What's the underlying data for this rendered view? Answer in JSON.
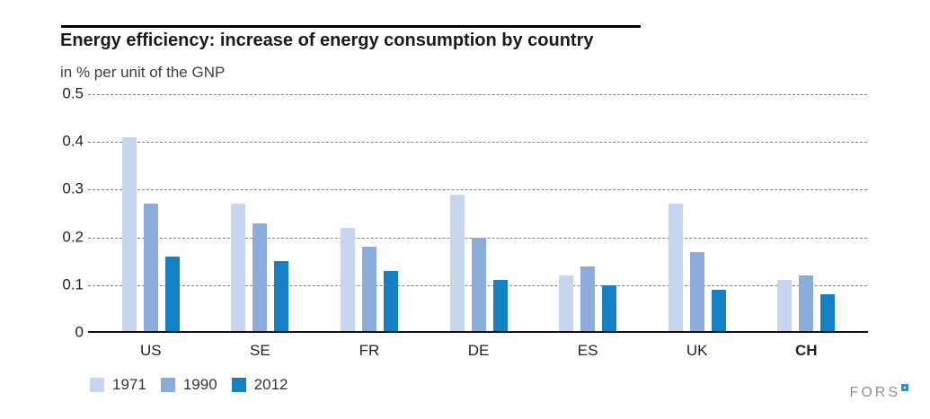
{
  "header": {
    "title": "Energy efficiency: increase of energy consumption by country",
    "subtitle": "in % per unit of the GNP"
  },
  "chart_data": {
    "type": "bar",
    "title": "Energy efficiency: increase of energy consumption by country",
    "subtitle": "in % per unit of the GNP",
    "categories": [
      "US",
      "SE",
      "FR",
      "DE",
      "ES",
      "UK",
      "CH"
    ],
    "bold_category": "CH",
    "series": [
      {
        "name": "1971",
        "color": "#c7d5ef",
        "values": [
          0.41,
          0.27,
          0.22,
          0.29,
          0.12,
          0.27,
          0.11
        ]
      },
      {
        "name": "1990",
        "color": "#8cadda",
        "values": [
          0.27,
          0.23,
          0.18,
          0.2,
          0.14,
          0.17,
          0.12
        ]
      },
      {
        "name": "2012",
        "color": "#1580c4",
        "values": [
          0.16,
          0.15,
          0.13,
          0.11,
          0.1,
          0.09,
          0.08
        ]
      }
    ],
    "ylim": [
      0,
      0.5
    ],
    "yticks": [
      0,
      0.1,
      0.2,
      0.3,
      0.4,
      0.5
    ],
    "grid": "horizontal-dashed",
    "legend_position": "bottom-left"
  },
  "footer": {
    "logo_text": "FORS"
  },
  "colors": {
    "series_1971": "#c7d5ef",
    "series_1990": "#8cadda",
    "series_2012": "#1580c4",
    "grid": "#7f7f7f",
    "axis": "#111111",
    "title_text": "#1a1a1a",
    "body_text": "#333333",
    "logo_text": "#8f8f8f",
    "logo_square": "#2f93c9"
  }
}
